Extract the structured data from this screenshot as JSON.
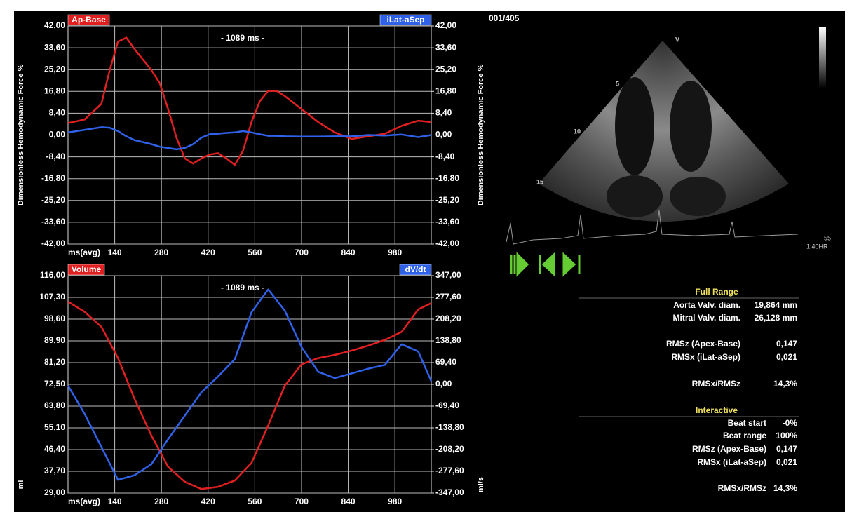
{
  "chart_data": [
    {
      "type": "line",
      "annotation": "- 1089 ms -",
      "x_label": "ms(avg)",
      "y_label": "Dimensionless Hemodynamic Force %",
      "y2_label": "Dimensionless Hemodynamic Force %",
      "x": [
        0,
        50,
        100,
        125,
        150,
        175,
        200,
        250,
        275,
        300,
        325,
        350,
        375,
        400,
        425,
        450,
        475,
        500,
        525,
        550,
        575,
        600,
        625,
        650,
        700,
        750,
        800,
        850,
        900,
        950,
        1000,
        1050,
        1089
      ],
      "xlim": [
        0,
        1089
      ],
      "xticks": [
        140,
        280,
        420,
        560,
        700,
        840,
        980
      ],
      "ylim": [
        -42,
        42
      ],
      "yticks": [
        {
          "value": 42,
          "label": "42,00"
        },
        {
          "value": 33.6,
          "label": "33,60"
        },
        {
          "value": 25.2,
          "label": "25,20"
        },
        {
          "value": 16.8,
          "label": "16,80"
        },
        {
          "value": 8.4,
          "label": "8,40"
        },
        {
          "value": 0,
          "label": "0,00"
        },
        {
          "value": -8.4,
          "label": "-8,40"
        },
        {
          "value": -16.8,
          "label": "-16,80"
        },
        {
          "value": -25.2,
          "label": "-25,20"
        },
        {
          "value": -33.6,
          "label": "-33,60"
        },
        {
          "value": -42,
          "label": "-42,00"
        }
      ],
      "y2lim": [
        -42,
        42
      ],
      "y2ticks": [
        {
          "value": 42,
          "label": "42,00"
        },
        {
          "value": 33.6,
          "label": "33,60"
        },
        {
          "value": 25.2,
          "label": "25,20"
        },
        {
          "value": 16.8,
          "label": "16,80"
        },
        {
          "value": 8.4,
          "label": "8,40"
        },
        {
          "value": 0,
          "label": "0,00"
        },
        {
          "value": -8.4,
          "label": "-8,40"
        },
        {
          "value": -16.8,
          "label": "-16,80"
        },
        {
          "value": -25.2,
          "label": "-25,20"
        },
        {
          "value": -33.6,
          "label": "-33,60"
        },
        {
          "value": -42,
          "label": "-42,00"
        }
      ],
      "grid": true,
      "series": [
        {
          "name": "Ap-Base",
          "color": "#e02020",
          "values": [
            4.6,
            6,
            12,
            25,
            36,
            37.5,
            33,
            25,
            20,
            10,
            -1,
            -9,
            -11,
            -9,
            -7.5,
            -7,
            -9,
            -11.5,
            -6,
            5,
            13,
            17,
            17,
            15,
            10,
            5,
            1,
            -1.5,
            -0.5,
            0.5,
            3.5,
            5.5,
            5
          ]
        },
        {
          "name": "iLat-aSep",
          "color": "#2f62e8",
          "axis": "y2",
          "values": [
            1,
            2,
            3,
            2.8,
            1.5,
            -0.5,
            -2,
            -3.5,
            -4.5,
            -5,
            -5.5,
            -5,
            -3.5,
            -1,
            0.3,
            0.5,
            0.8,
            1,
            1.5,
            1,
            0.3,
            -0.3,
            -0.3,
            -0.5,
            -0.6,
            -0.6,
            -0.5,
            -0.5,
            0,
            -0.2,
            0.2,
            -0.8,
            0
          ]
        }
      ]
    },
    {
      "type": "line",
      "annotation": "- 1089 ms -",
      "x_label": "ms(avg)",
      "y_label": "ml",
      "y2_label": "ml/s",
      "x": [
        0,
        50,
        100,
        150,
        200,
        250,
        300,
        350,
        400,
        450,
        500,
        550,
        600,
        650,
        700,
        750,
        800,
        850,
        900,
        950,
        1000,
        1050,
        1089
      ],
      "xlim": [
        0,
        1089
      ],
      "xticks": [
        140,
        280,
        420,
        560,
        700,
        840,
        980
      ],
      "ylim": [
        29,
        116
      ],
      "yticks": [
        {
          "value": 116,
          "label": "116,00"
        },
        {
          "value": 107.3,
          "label": "107,30"
        },
        {
          "value": 98.6,
          "label": "98,60"
        },
        {
          "value": 89.9,
          "label": "89,90"
        },
        {
          "value": 81.2,
          "label": "81,20"
        },
        {
          "value": 72.5,
          "label": "72,50"
        },
        {
          "value": 63.8,
          "label": "63,80"
        },
        {
          "value": 55.1,
          "label": "55,10"
        },
        {
          "value": 46.4,
          "label": "46,40"
        },
        {
          "value": 37.7,
          "label": "37,70"
        },
        {
          "value": 29,
          "label": "29,00"
        }
      ],
      "y2lim": [
        -347,
        347
      ],
      "y2ticks": [
        {
          "value": 347,
          "label": "347,00"
        },
        {
          "value": 277.6,
          "label": "277,60"
        },
        {
          "value": 208.2,
          "label": "208,20"
        },
        {
          "value": 138.8,
          "label": "138,80"
        },
        {
          "value": 69.4,
          "label": "69,40"
        },
        {
          "value": 0,
          "label": "0,00"
        },
        {
          "value": -69.4,
          "label": "-69,40"
        },
        {
          "value": -138.8,
          "label": "-138,80"
        },
        {
          "value": -208.2,
          "label": "-208,20"
        },
        {
          "value": -277.6,
          "label": "-277,60"
        },
        {
          "value": -347,
          "label": "-347,00"
        }
      ],
      "grid": true,
      "series": [
        {
          "name": "Volume",
          "color": "#e02020",
          "values": [
            105.6,
            101.5,
            95.5,
            83,
            66.5,
            52,
            39.5,
            33.5,
            30.6,
            31.5,
            34,
            41,
            56,
            72,
            80.5,
            83,
            84.3,
            86,
            88,
            90.3,
            93.5,
            102.5,
            105
          ]
        },
        {
          "name": "dV/dt",
          "color": "#2f62e8",
          "axis": "y2",
          "values": [
            -4,
            -95,
            -200,
            -305,
            -290,
            -255,
            -175,
            -100,
            -25,
            25,
            80,
            230,
            303,
            235,
            119,
            40,
            20,
            35,
            50,
            62,
            128,
            105,
            10
          ]
        }
      ]
    }
  ],
  "viewer": {
    "frame": "001/405",
    "depth_labels": [
      "V",
      "5",
      "10",
      "15"
    ],
    "hr": "55",
    "hr_label": "1:40HR"
  },
  "panel": {
    "full_range": {
      "title": "Full Range",
      "rows": [
        [
          "Aorta Valv. diam.",
          "19,864 mm"
        ],
        [
          "Mitral Valv. diam.",
          "26,128 mm"
        ],
        [
          "RMSz (Apex-Base)",
          "0,147"
        ],
        [
          "RMSx (iLat-aSep)",
          "0,021"
        ],
        [
          "RMSx/RMSz",
          "14,3%"
        ]
      ]
    },
    "interactive": {
      "title": "Interactive",
      "rows": [
        [
          "Beat start",
          "-0%"
        ],
        [
          "Beat range",
          "100%"
        ],
        [
          "RMSz (Apex-Base)",
          "0,147"
        ],
        [
          "RMSx (iLat-aSep)",
          "0,021"
        ],
        [
          "RMSx/RMSz",
          "14,3%"
        ]
      ]
    }
  }
}
